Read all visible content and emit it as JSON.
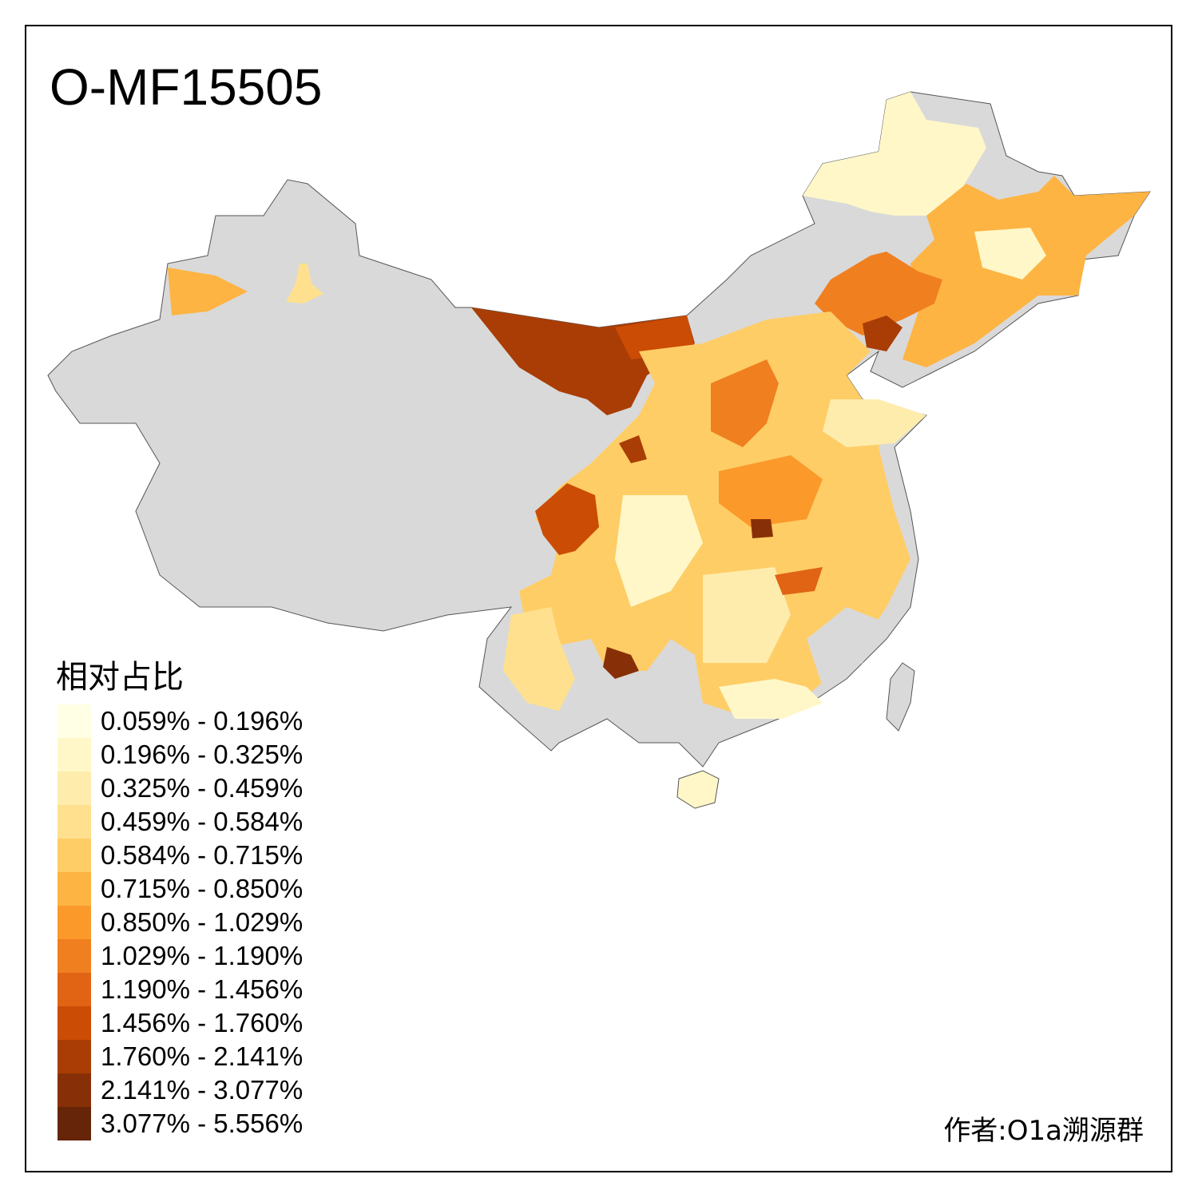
{
  "title": "O-MF15505",
  "legend": {
    "title": "相对占比",
    "items": [
      {
        "label": "0.059% - 0.196%",
        "color": "#FFFFE5"
      },
      {
        "label": "0.196% - 0.325%",
        "color": "#FFF7C8"
      },
      {
        "label": "0.325% - 0.459%",
        "color": "#FEECAD"
      },
      {
        "label": "0.459% - 0.584%",
        "color": "#FEE08E"
      },
      {
        "label": "0.584% - 0.715%",
        "color": "#FECD66"
      },
      {
        "label": "0.715% - 0.850%",
        "color": "#FDB443"
      },
      {
        "label": "0.850% - 1.029%",
        "color": "#FB992B"
      },
      {
        "label": "1.029% - 1.190%",
        "color": "#F07F20"
      },
      {
        "label": "1.190% - 1.456%",
        "color": "#E06414"
      },
      {
        "label": "1.456% - 1.760%",
        "color": "#CB4C04"
      },
      {
        "label": "1.760% - 2.141%",
        "color": "#A93D05"
      },
      {
        "label": "2.141% - 3.077%",
        "color": "#873007"
      },
      {
        "label": "3.077% - 5.556%",
        "color": "#662508"
      }
    ]
  },
  "no_data_color": "#D9D9D9",
  "author": "作者:O1a溯源群"
}
